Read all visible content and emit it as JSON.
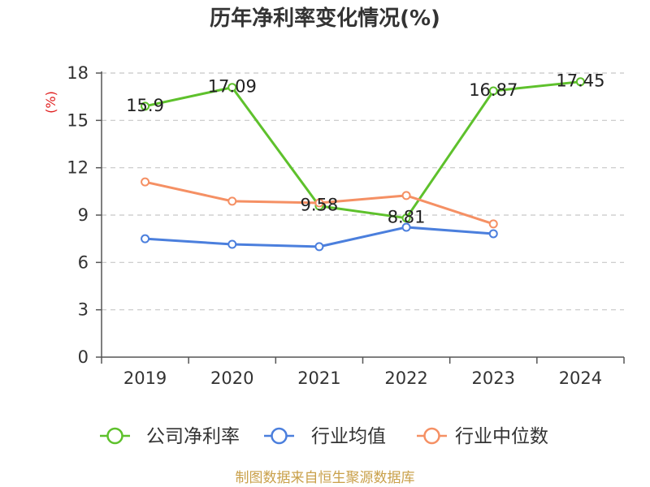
{
  "chart_data": {
    "type": "line",
    "title": "历年净利率变化情况(%)",
    "ylabel": "(%)",
    "categories": [
      "2019",
      "2020",
      "2021",
      "2022",
      "2023",
      "2024"
    ],
    "ylim": [
      0,
      18
    ],
    "yticks": [
      0,
      3,
      6,
      9,
      12,
      15,
      18
    ],
    "grid": true,
    "legend_position": "bottom",
    "ylabel_color": "#e02020",
    "series": [
      {
        "name": "公司净利率",
        "color": "#5ec12c",
        "show_labels": true,
        "values": [
          15.9,
          17.09,
          9.58,
          8.81,
          16.87,
          17.45
        ]
      },
      {
        "name": "行业均值",
        "color": "#4b7fdd",
        "show_labels": false,
        "values": [
          7.5,
          7.15,
          7.0,
          8.23,
          7.82,
          null
        ]
      },
      {
        "name": "行业中位数",
        "color": "#f59064",
        "show_labels": false,
        "values": [
          11.1,
          9.88,
          9.77,
          10.24,
          8.44,
          null
        ]
      }
    ]
  },
  "footer": {
    "text": "制图数据来自恒生聚源数据库",
    "color": "#c9a04a"
  }
}
